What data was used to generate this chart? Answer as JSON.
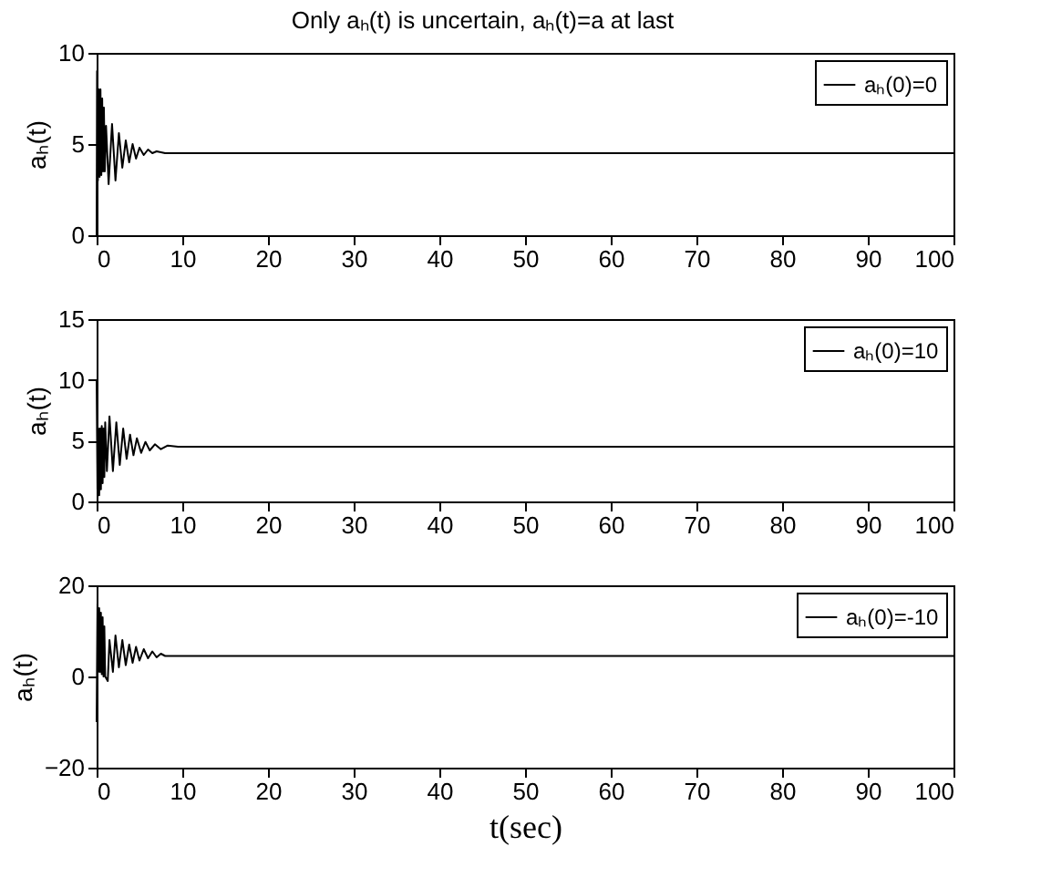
{
  "chart_data": [
    {
      "type": "line",
      "title": "Only aₕ(t) is uncertain, aₕ(t)=a at last",
      "ylabel": "aₕ(t)",
      "xlim": [
        0,
        100
      ],
      "xticks": [
        0,
        10,
        20,
        30,
        40,
        50,
        60,
        70,
        80,
        90,
        100
      ],
      "ylim": [
        0,
        10
      ],
      "yticks": [
        0,
        5,
        10
      ],
      "legend": "top right",
      "grid": false,
      "series": [
        {
          "name": "aₕ(0)=0",
          "color": "#000000",
          "x": [
            0,
            0.05,
            0.15,
            0.25,
            0.35,
            0.45,
            0.55,
            0.65,
            0.75,
            0.85,
            0.95,
            1.1,
            1.4,
            1.8,
            2.2,
            2.6,
            3.0,
            3.4,
            3.8,
            4.2,
            4.6,
            5.0,
            5.5,
            6.0,
            6.5,
            7.0,
            8.0,
            100
          ],
          "values": [
            0,
            9,
            3,
            8,
            3.2,
            8,
            3.3,
            7.5,
            3.5,
            7,
            3.5,
            6,
            2.8,
            6.1,
            3,
            5.6,
            3.7,
            5.2,
            4,
            5,
            4.2,
            4.8,
            4.4,
            4.7,
            4.5,
            4.6,
            4.5,
            4.5
          ]
        }
      ]
    },
    {
      "type": "line",
      "ylabel": "aₕ(t)",
      "xlim": [
        0,
        100
      ],
      "xticks": [
        0,
        10,
        20,
        30,
        40,
        50,
        60,
        70,
        80,
        90,
        100
      ],
      "ylim": [
        0,
        15
      ],
      "yticks": [
        0,
        5,
        10,
        15
      ],
      "legend": "top right",
      "grid": false,
      "series": [
        {
          "name": "aₕ(0)=10",
          "color": "#000000",
          "x": [
            0,
            0.1,
            0.2,
            0.3,
            0.4,
            0.5,
            0.6,
            0.7,
            0.8,
            0.9,
            1.0,
            1.2,
            1.5,
            1.9,
            2.3,
            2.7,
            3.1,
            3.5,
            3.9,
            4.3,
            4.7,
            5.2,
            5.7,
            6.2,
            6.8,
            7.5,
            8.3,
            9.5,
            100
          ],
          "values": [
            10,
            1,
            6,
            0.5,
            6,
            1,
            6.2,
            1.5,
            6,
            2,
            6.5,
            2.5,
            7,
            2.5,
            6.5,
            3,
            6,
            3.5,
            5.5,
            3.8,
            5.2,
            4,
            4.9,
            4.2,
            4.7,
            4.3,
            4.6,
            4.5,
            4.5
          ]
        }
      ]
    },
    {
      "type": "line",
      "xlabel": "t(sec)",
      "ylabel": "aₕ(t)",
      "xlim": [
        0,
        100
      ],
      "xticks": [
        0,
        10,
        20,
        30,
        40,
        50,
        60,
        70,
        80,
        90,
        100
      ],
      "ylim": [
        -20,
        20
      ],
      "yticks": [
        -20,
        0,
        20
      ],
      "legend": "top right",
      "grid": false,
      "series": [
        {
          "name": "aₕ(0)=-10",
          "color": "#000000",
          "x": [
            0,
            0.1,
            0.2,
            0.3,
            0.4,
            0.5,
            0.6,
            0.7,
            0.8,
            0.9,
            1.0,
            1.3,
            1.5,
            1.9,
            2.2,
            2.6,
            3.0,
            3.4,
            3.8,
            4.2,
            4.6,
            5.0,
            5.5,
            6.0,
            6.5,
            7.0,
            7.5,
            8.0,
            100
          ],
          "values": [
            -10,
            16,
            1,
            15,
            1,
            14,
            0.5,
            13,
            0,
            11,
            0,
            -1,
            8,
            1,
            9,
            2,
            8,
            2.5,
            7,
            3,
            6.5,
            3.5,
            6,
            4,
            5.5,
            4.2,
            5,
            4.5,
            4.5
          ]
        }
      ]
    }
  ]
}
